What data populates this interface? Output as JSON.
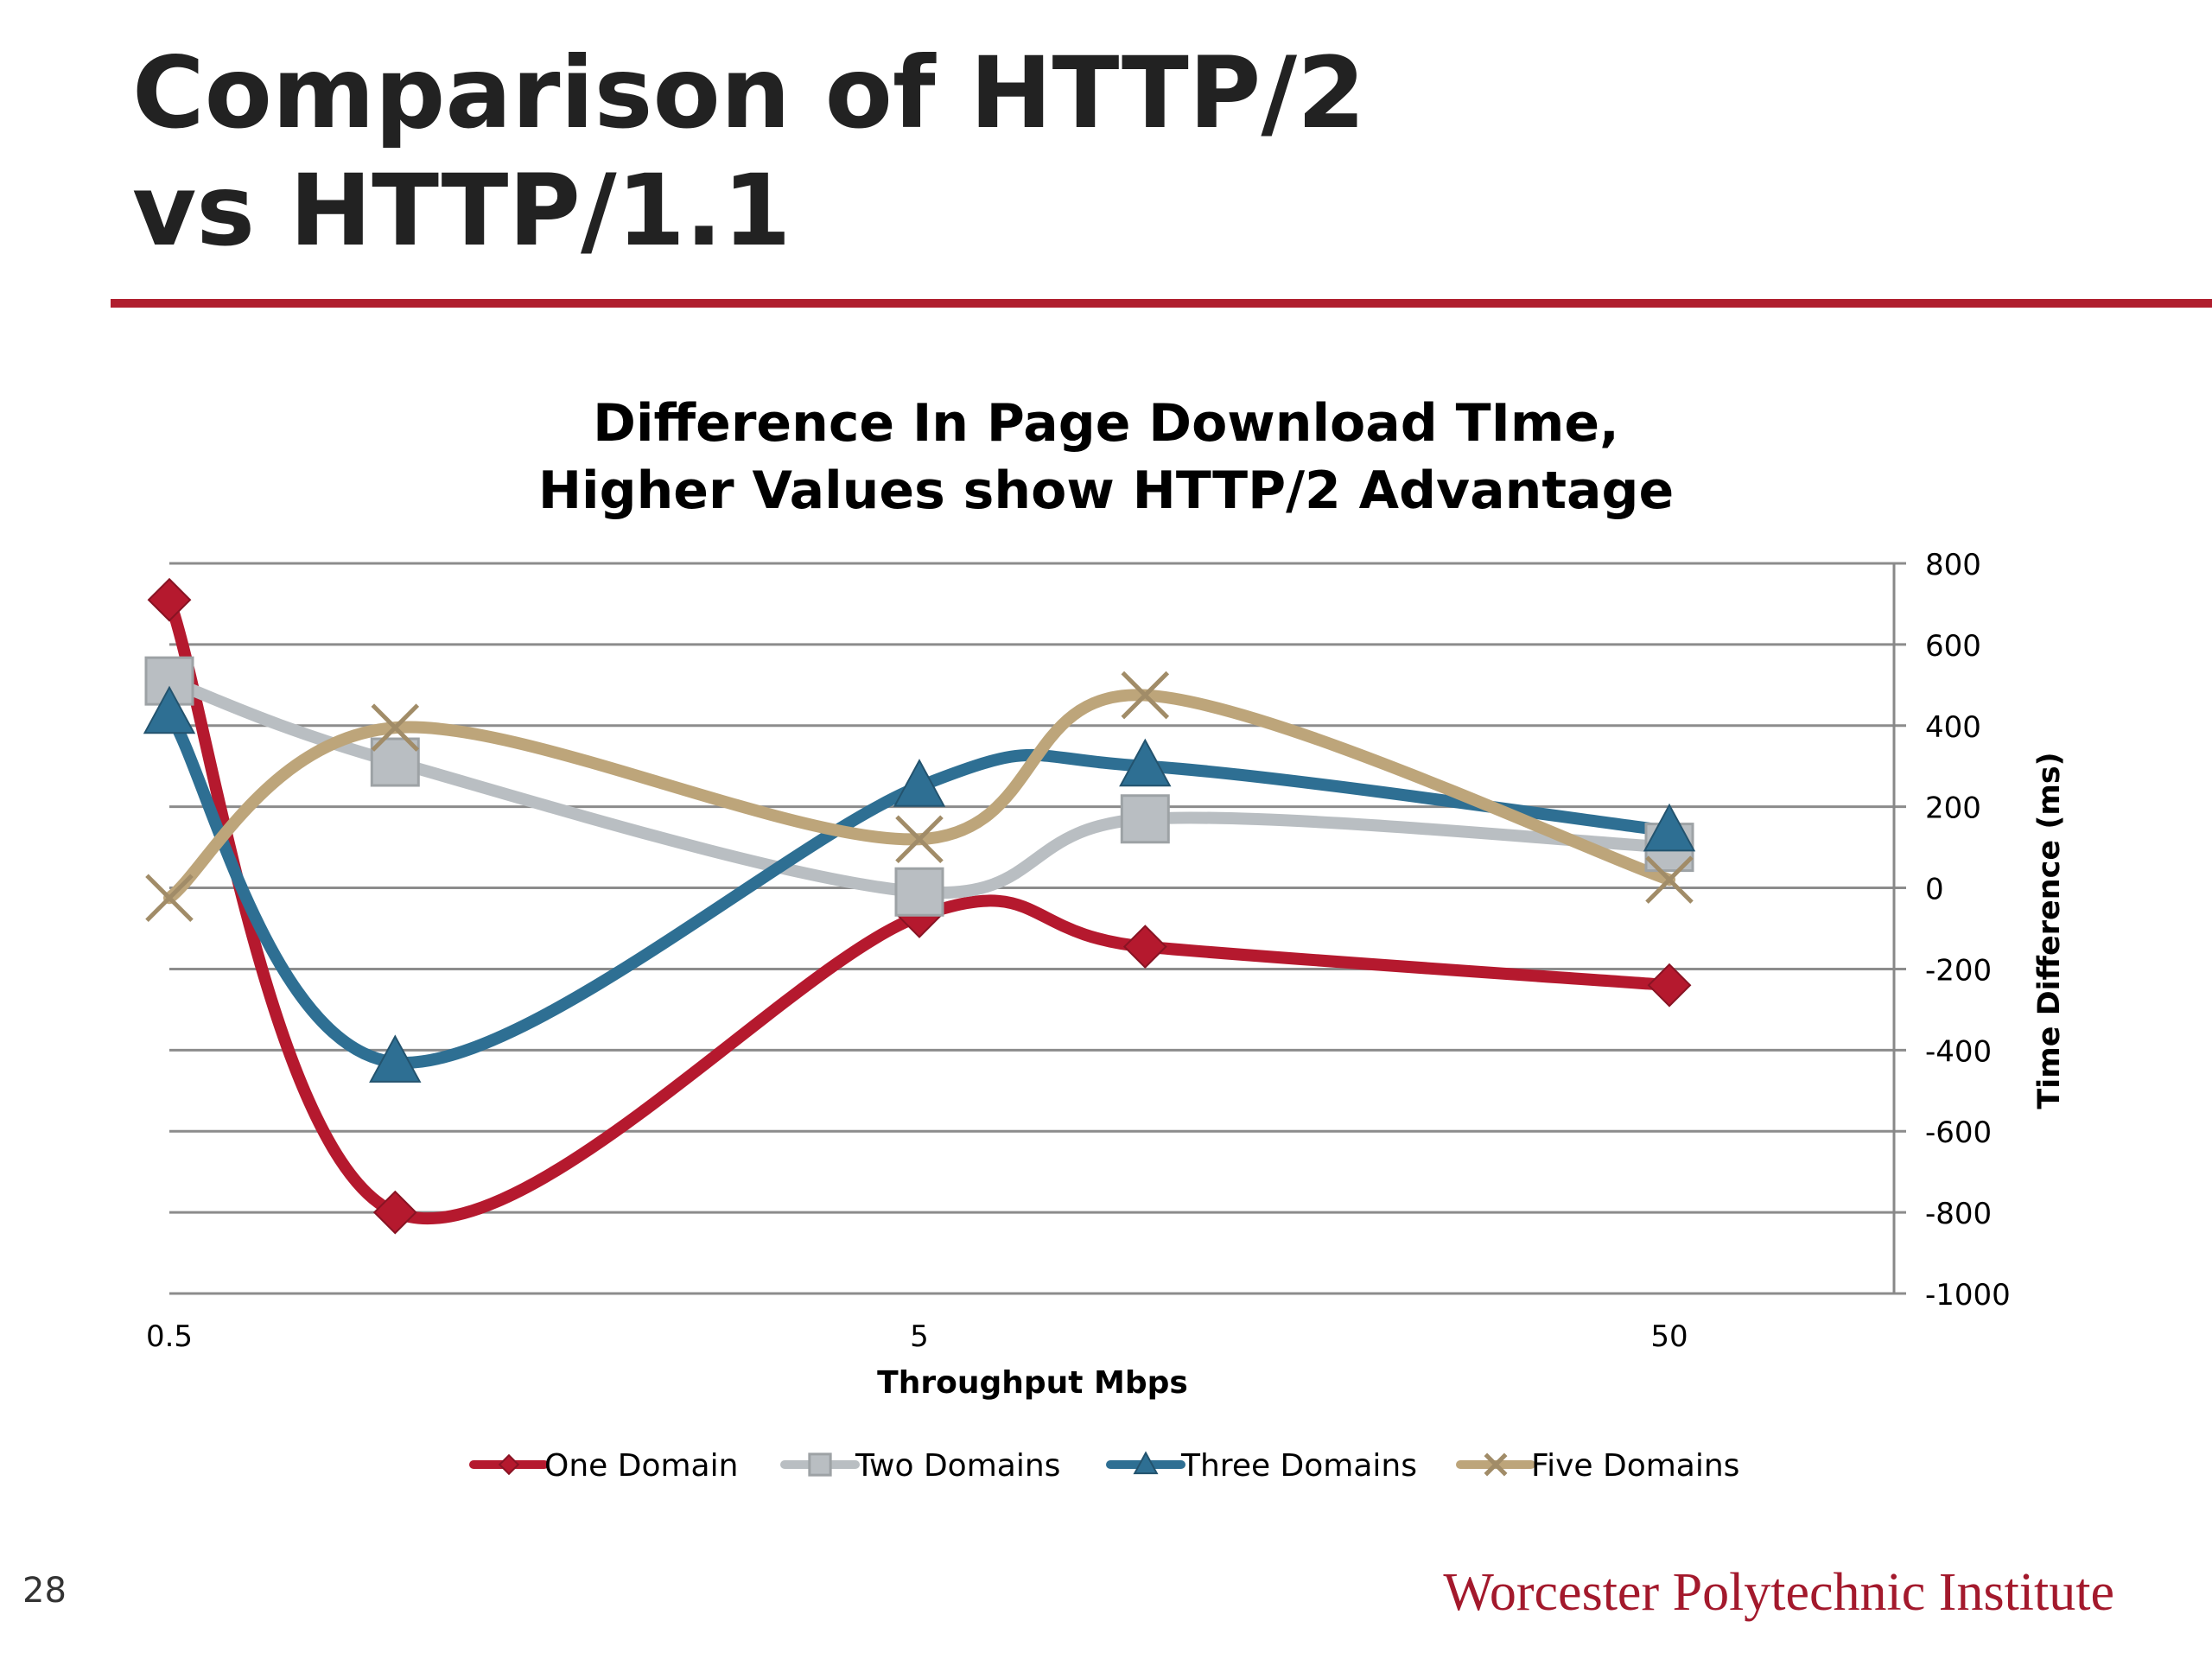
{
  "slide": {
    "title_line1": "Comparison of HTTP/2",
    "title_line2": "vs HTTP/1.1",
    "page_number": "28",
    "institution": "Worcester Polytechnic Institute"
  },
  "colors": {
    "accent_rule": "#b01e2e",
    "institution_text": "#a3192c",
    "title_text": "#222222"
  },
  "chart_data": {
    "type": "line",
    "title_line1": "Difference In Page Download TIme,",
    "title_line2": "Higher Values show HTTP/2 Advantage",
    "xlabel": "Throughput Mbps",
    "ylabel": "Time Difference (ms)",
    "x_scale": "log",
    "x_ticks": [
      0.5,
      5,
      50
    ],
    "x_tick_labels": [
      "0.5",
      "5",
      "50"
    ],
    "x": [
      0.5,
      1,
      5,
      10,
      50
    ],
    "ylim": [
      -1000,
      800
    ],
    "y_ticks": [
      800,
      600,
      400,
      200,
      0,
      -200,
      -400,
      -600,
      -800,
      -1000
    ],
    "y_axis_side": "right",
    "grid": true,
    "legend_position": "bottom",
    "series": [
      {
        "name": "One Domain",
        "marker": "diamond",
        "color": "#b5192e",
        "values": [
          710,
          -800,
          -70,
          -145,
          -240
        ]
      },
      {
        "name": "Two Domains",
        "marker": "square",
        "color": "#b9bec2",
        "values": [
          510,
          310,
          -10,
          170,
          100
        ]
      },
      {
        "name": "Three Domains",
        "marker": "triangle",
        "color": "#2e6f93",
        "values": [
          430,
          -430,
          250,
          300,
          140
        ]
      },
      {
        "name": "Five Domains",
        "marker": "x",
        "color": "#bda57a",
        "values": [
          -25,
          395,
          120,
          475,
          20
        ]
      }
    ]
  }
}
